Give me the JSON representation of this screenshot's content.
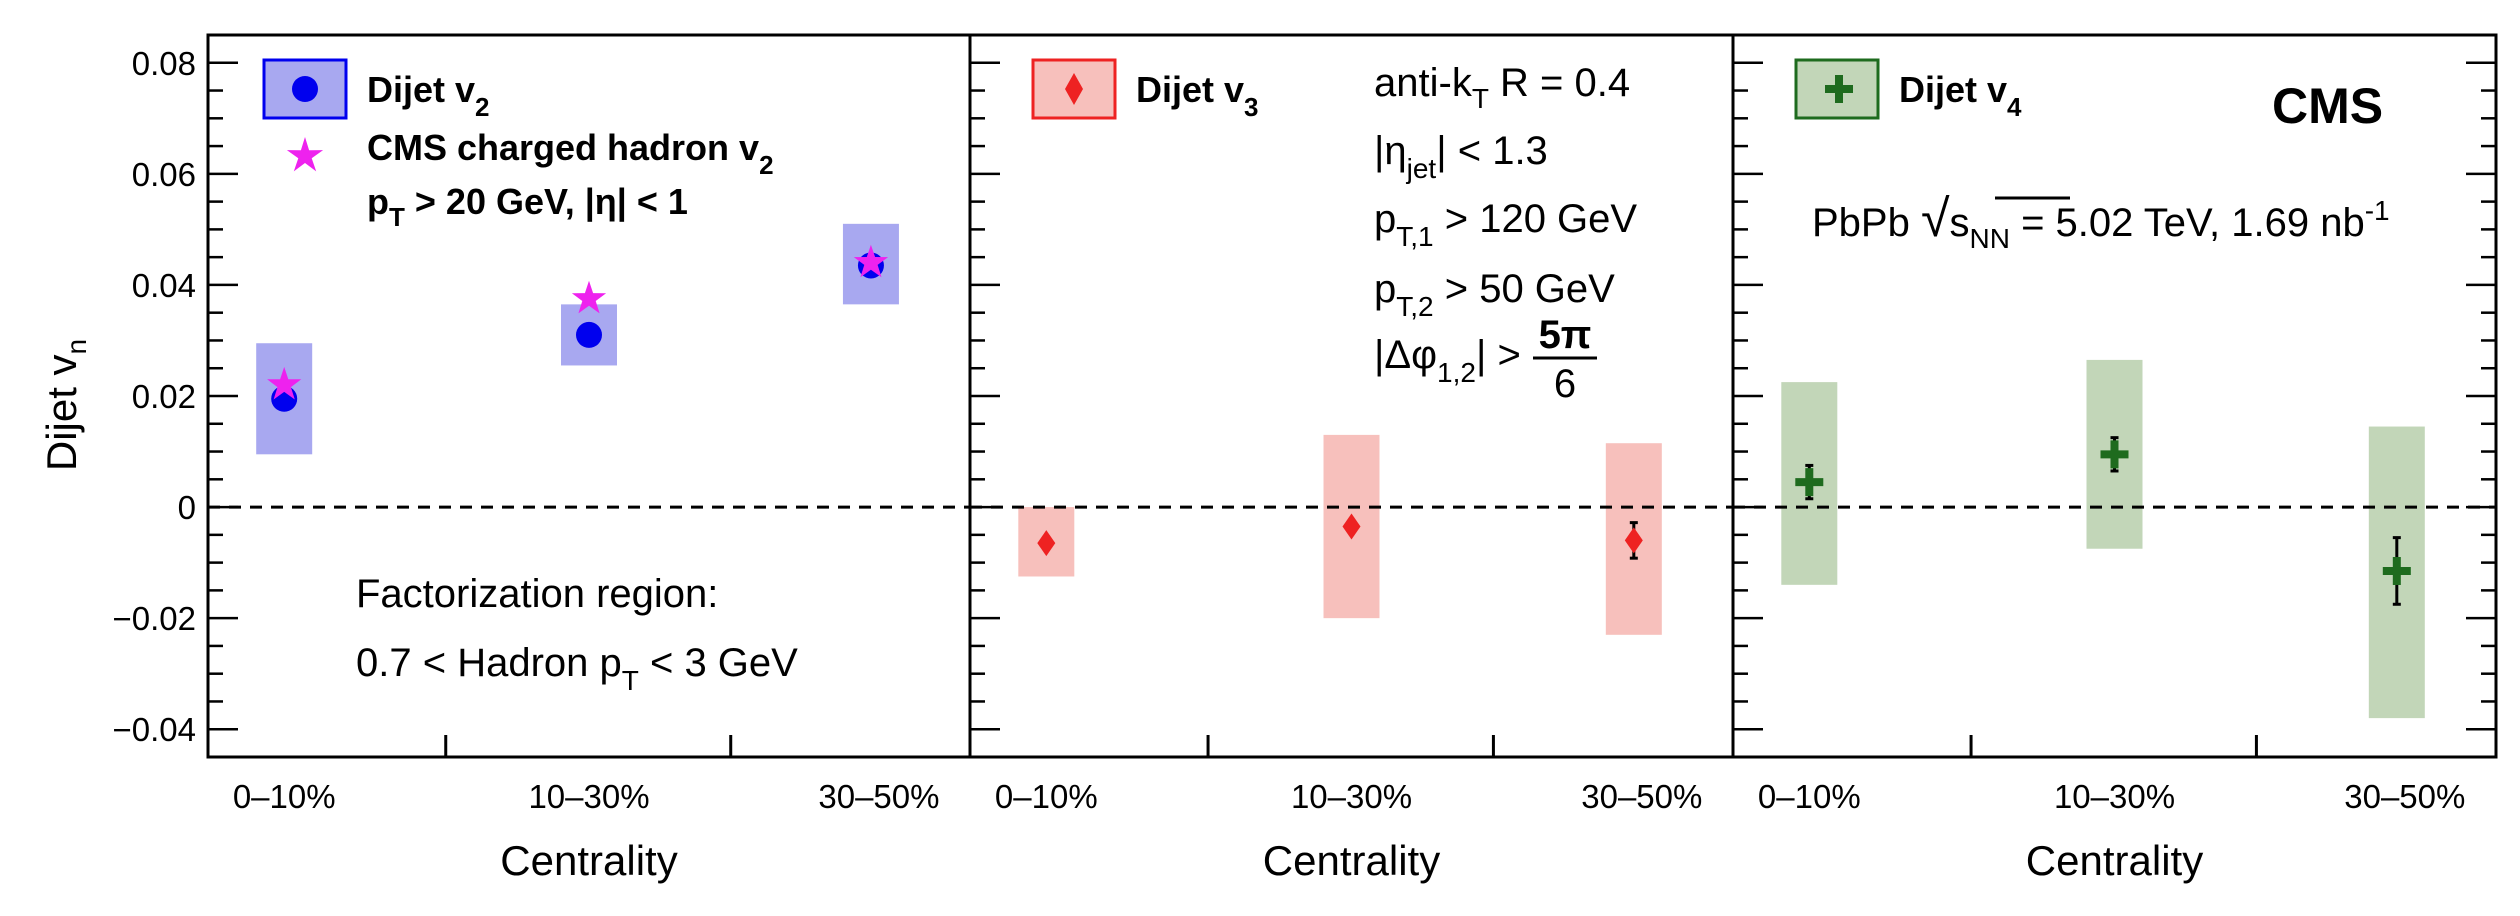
{
  "chart_data": {
    "type": "scatter",
    "ylabel": "Dijet v",
    "ylabel_sub": "n",
    "ylim": [
      -0.045,
      0.085
    ],
    "yticks": [
      -0.04,
      -0.02,
      0,
      0.02,
      0.04,
      0.06,
      0.08
    ],
    "ytick_labels": [
      "−0.04",
      "−0.02",
      "0",
      "0.02",
      "0.04",
      "0.06",
      "0.08"
    ],
    "categories": [
      "0–10%",
      "10–30%",
      "30–50%"
    ],
    "xlabel": "Centrality",
    "panels": [
      {
        "legend": [
          {
            "label": "Dijet v",
            "sub": "2"
          },
          {
            "label": "CMS charged hadron v",
            "sub": "2"
          }
        ],
        "legend_cut": {
          "p": "p",
          "sub": "T",
          "rest": " > 20 GeV, |η| < 1"
        },
        "factorization_title": "Factorization region:",
        "factorization_range": {
          "pre": "0.7 < Hadron p",
          "sub": "T",
          "post": " < 3 GeV"
        },
        "series": [
          {
            "name": "Dijet v2",
            "color": "#0000ee",
            "syst_color": "#a8a8f0",
            "values": [
              0.0195,
              0.031,
              0.0435
            ],
            "syst": [
              [
                0.0095,
                0.0295
              ],
              [
                0.0255,
                0.0365
              ],
              [
                0.0365,
                0.051
              ]
            ],
            "stat": [
              0.001,
              0.001,
              0.001
            ]
          },
          {
            "name": "CMS charged hadron v2",
            "color": "#ee22ee",
            "values": [
              0.022,
              0.0375,
              0.044
            ]
          }
        ]
      },
      {
        "legend": [
          {
            "label": "Dijet v",
            "sub": "3"
          }
        ],
        "cuts": [
          {
            "pre": "anti-k",
            "sub": "T",
            "post": " R = 0.4"
          },
          {
            "pre": "|η",
            "sub": "jet",
            "post": "| < 1.3"
          },
          {
            "pre": "p",
            "sub": "T,1",
            "post": " > 120 GeV"
          },
          {
            "pre": "p",
            "sub": "T,2",
            "post": " > 50 GeV"
          },
          {
            "pre": "|Δφ",
            "sub": "1,2",
            "post": "| >",
            "frac_num": "5π",
            "frac_den": "6"
          }
        ],
        "series": [
          {
            "name": "Dijet v3",
            "color": "#ee2222",
            "syst_color": "#f7c0bc",
            "values": [
              -0.0065,
              -0.0035,
              -0.006
            ],
            "syst": [
              [
                -0.0125,
                0.0
              ],
              [
                -0.02,
                0.013
              ],
              [
                -0.023,
                0.0115
              ]
            ],
            "stat": [
              0.0008,
              0.0008,
              0.0032
            ]
          }
        ]
      },
      {
        "legend": [
          {
            "label": "Dijet v",
            "sub": "4"
          }
        ],
        "experiment": "CMS",
        "collision": {
          "pre": "PbPb ",
          "root": "s",
          "root_sub": "NN",
          "post": " = 5.02 TeV, 1.69 nb",
          "sup": "-1"
        },
        "series": [
          {
            "name": "Dijet v4",
            "color": "#1e6b1e",
            "syst_color": "#c2d6b8",
            "values": [
              0.0045,
              0.0095,
              -0.0115
            ],
            "syst": [
              [
                -0.014,
                0.0225
              ],
              [
                -0.0075,
                0.0265
              ],
              [
                -0.038,
                0.0145
              ]
            ],
            "stat": [
              0.003,
              0.003,
              0.006
            ]
          }
        ]
      }
    ]
  }
}
